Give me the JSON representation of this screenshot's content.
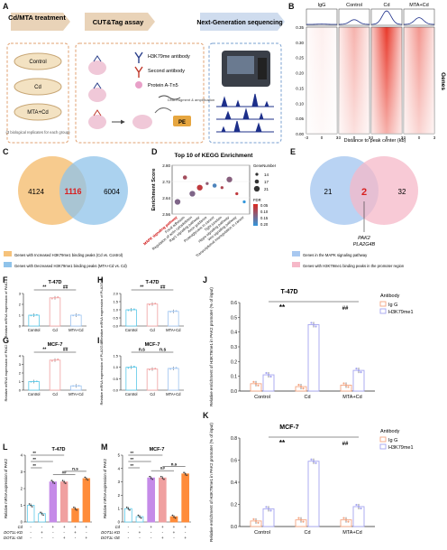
{
  "panels": {
    "A": "A",
    "B": "B",
    "C": "C",
    "D": "D",
    "E": "E",
    "F": "F",
    "G": "G",
    "H": "H",
    "I": "I",
    "J": "J",
    "K": "K",
    "L": "L",
    "M": "M"
  },
  "panelA": {
    "stage1_title": "Cd/MTA treatment",
    "stage2_title": "CUT&Tag assay",
    "stage3_title": "Next-Generation sequencing",
    "dishes": [
      "Control",
      "Cd",
      "MTA+Cd"
    ],
    "replicate_note": "(3 biological replicates for each group)",
    "legend": [
      "H3K79me antibody",
      "Second antibody",
      "Protein A-Tn5"
    ],
    "step_text": "DNA fragment & amplification",
    "tag_label": "PE"
  },
  "panelB": {
    "groups": [
      "IgG",
      "Control",
      "Cd",
      "MTA+Cd"
    ],
    "y_label": "Genes",
    "x_label": "Distance to peak center (kb)",
    "y_ticks": [
      "0.35",
      "0.30",
      "0.25",
      "0.20",
      "0.15",
      "0.10",
      "0.05",
      "0.00"
    ],
    "x_ticks": [
      "-3",
      "0",
      "3"
    ],
    "profile_peaks": [
      0.02,
      0.35,
      1.0,
      0.5
    ]
  },
  "panelC": {
    "left": "4124",
    "overlap": "1116",
    "right": "6004",
    "legend": [
      "Genes with Increased H3K79me1 binding peaks (Cd vs. Control)",
      "Genes with Decreased H3K79me1 binding peaks (MTA+Cd vs. Cd)"
    ],
    "colors": [
      "#f6c27a",
      "#8fc3ea"
    ]
  },
  "panelE": {
    "left": "21",
    "overlap": "2",
    "right": "32",
    "genes": [
      "PAK2",
      "PLA2G4B"
    ],
    "legend": [
      "Genes in the MAPK signaling pathway",
      "Genes with H3K79me1 binding peaks in the promoter region"
    ],
    "colors": [
      "#a8c8f0",
      "#f6b8c8"
    ]
  },
  "chart_data": [
    {
      "id": "D",
      "type": "scatter",
      "title": "Top 10 of KEGG Enrichment",
      "ylabel": "Enrichment Score",
      "ylim": [
        2.56,
        2.8
      ],
      "y_ticks": [
        "2.80",
        "2.72",
        "2.64",
        "2.56"
      ],
      "categories": [
        "MAPK signaling pathway",
        "Focal adhesion",
        "Regulation of actin cytoskeleton",
        "Rap1 signaling pathway",
        "Axon guidance",
        "Proteoglycans in cancer",
        "Tight junction",
        "Hippo signaling pathway",
        "Wnt signaling pathway",
        "Transcriptional misregulation in cancer"
      ],
      "highlight": "MAPK signaling pathway",
      "values": [
        2.62,
        2.74,
        2.66,
        2.69,
        2.71,
        2.7,
        2.69,
        2.73,
        2.66,
        2.62
      ],
      "gene_number": [
        21,
        17,
        21,
        21,
        14,
        17,
        14,
        21,
        14,
        14
      ],
      "fdr": [
        0.2,
        0.12,
        0.2,
        0.06,
        0.16,
        0.3,
        0.1,
        0.18,
        0.06,
        0.36
      ],
      "size_legend_title": "GeneNumber",
      "size_legend": [
        "14",
        "17",
        "21"
      ],
      "color_legend_title": "FDR",
      "color_legend": [
        "0.05",
        "0.10",
        "0.15",
        "0.20"
      ]
    },
    {
      "id": "F",
      "type": "bar",
      "title": "T-47D",
      "ylabel": "Relative mRNA expression of PAK2",
      "categories": [
        "Control",
        "Cd",
        "MTA+Cd"
      ],
      "values": [
        1.0,
        2.6,
        1.0
      ],
      "ylim": [
        0,
        3
      ],
      "y_ticks": [
        "0",
        "1",
        "2",
        "3"
      ],
      "sig": [
        {
          "a": 0,
          "b": 1,
          "t": "**"
        },
        {
          "a": 1,
          "b": 2,
          "t": "##"
        }
      ]
    },
    {
      "id": "G",
      "type": "bar",
      "title": "MCF-7",
      "ylabel": "Relative mRNA expression of PAK2",
      "categories": [
        "Control",
        "Cd",
        "MTA+Cd"
      ],
      "values": [
        1.0,
        3.5,
        0.5
      ],
      "ylim": [
        0,
        4
      ],
      "y_ticks": [
        "0",
        "1",
        "2",
        "3",
        "4"
      ],
      "sig": [
        {
          "a": 0,
          "b": 1,
          "t": "**"
        },
        {
          "a": 1,
          "b": 2,
          "t": "##"
        }
      ]
    },
    {
      "id": "H",
      "type": "bar",
      "title": "T-47D",
      "ylabel": "Relative mRNA expression of PLA2G4B",
      "categories": [
        "Control",
        "Cd",
        "MTA+Cd"
      ],
      "values": [
        1.0,
        1.35,
        0.9
      ],
      "ylim": [
        0,
        2.0
      ],
      "y_ticks": [
        "0.0",
        "0.5",
        "1.0",
        "1.5",
        "2.0"
      ],
      "sig": [
        {
          "a": 0,
          "b": 1,
          "t": "**"
        },
        {
          "a": 1,
          "b": 2,
          "t": "##"
        }
      ]
    },
    {
      "id": "I",
      "type": "bar",
      "title": "MCF-7",
      "ylabel": "Relative mRNA expression of PLA2G4B",
      "categories": [
        "Control",
        "Cd",
        "MTA+Cd"
      ],
      "values": [
        1.0,
        0.92,
        0.95
      ],
      "ylim": [
        0,
        1.5
      ],
      "y_ticks": [
        "0.0",
        "0.5",
        "1.0",
        "1.5"
      ],
      "sig": [
        {
          "a": 0,
          "b": 1,
          "t": "n.s"
        },
        {
          "a": 1,
          "b": 2,
          "t": "n.s"
        }
      ]
    },
    {
      "id": "J",
      "type": "bar",
      "title": "T-47D",
      "ylabel": "Relative enrichment of H3K79me1 in PAK2 promoter (% of input)",
      "categories": [
        "Control",
        "Cd",
        "MTA+Cd"
      ],
      "series": [
        {
          "name": "Ig G",
          "values": [
            0.05,
            0.03,
            0.04
          ]
        },
        {
          "name": "H3K79me1",
          "values": [
            0.11,
            0.45,
            0.14
          ]
        }
      ],
      "ylim": [
        0,
        0.6
      ],
      "y_ticks": [
        "0.0",
        "0.1",
        "0.2",
        "0.3",
        "0.4",
        "0.5",
        "0.6"
      ],
      "legend_title": "Antibody",
      "sig": [
        {
          "t": "**"
        },
        {
          "t": "##"
        }
      ]
    },
    {
      "id": "K",
      "type": "bar",
      "title": "MCF-7",
      "ylabel": "Relative enrichment of H3K79me1 in PAK2 promoter (% of input)",
      "categories": [
        "Control",
        "Cd",
        "MTA+Cd"
      ],
      "series": [
        {
          "name": "Ig G",
          "values": [
            0.05,
            0.06,
            0.06
          ]
        },
        {
          "name": "H3K79me1",
          "values": [
            0.16,
            0.59,
            0.18
          ]
        }
      ],
      "ylim": [
        0,
        0.8
      ],
      "y_ticks": [
        "0.0",
        "0.2",
        "0.4",
        "0.6",
        "0.8"
      ],
      "legend_title": "Antibody",
      "sig": [
        {
          "t": "**"
        },
        {
          "t": "##"
        }
      ]
    },
    {
      "id": "L",
      "type": "bar",
      "title": "T-47D",
      "ylabel": "Relative mRNA expression of PAK2",
      "values": [
        1.0,
        0.5,
        2.4,
        2.4,
        0.8,
        2.6
      ],
      "ylim": [
        0,
        4
      ],
      "y_ticks": [
        "0",
        "1",
        "2",
        "3",
        "4"
      ],
      "rows": [
        {
          "label": "Cd",
          "marks": [
            "-",
            "-",
            "+",
            "+",
            "+",
            "+"
          ]
        },
        {
          "label": "DOT1L-KD",
          "marks": [
            "-",
            "+",
            "-",
            "-",
            "+",
            "-"
          ]
        },
        {
          "label": "DOT1L-OE",
          "marks": [
            "-",
            "-",
            "-",
            "+",
            "-",
            "+"
          ]
        }
      ],
      "sig": [
        {
          "a": 0,
          "b": 1,
          "t": "**"
        },
        {
          "a": 0,
          "b": 2,
          "t": "**"
        },
        {
          "a": 0,
          "b": 3,
          "t": "**"
        },
        {
          "a": 2,
          "b": 4,
          "t": "##"
        },
        {
          "a": 3,
          "b": 5,
          "t": "n.s"
        }
      ]
    },
    {
      "id": "M",
      "type": "bar",
      "title": "MCF-7",
      "ylabel": "Relative mRNA expression of PAK2",
      "values": [
        1.0,
        0.4,
        3.3,
        3.3,
        0.4,
        3.6
      ],
      "ylim": [
        0,
        5
      ],
      "y_ticks": [
        "0",
        "1",
        "2",
        "3",
        "4",
        "5"
      ],
      "rows": [
        {
          "label": "Cd",
          "marks": [
            "-",
            "-",
            "+",
            "+",
            "+",
            "+"
          ]
        },
        {
          "label": "DOT1L-KD",
          "marks": [
            "-",
            "+",
            "-",
            "-",
            "+",
            "-"
          ]
        },
        {
          "label": "DOT1L-OE",
          "marks": [
            "-",
            "-",
            "-",
            "+",
            "-",
            "+"
          ]
        }
      ],
      "sig": [
        {
          "a": 0,
          "b": 1,
          "t": "**"
        },
        {
          "a": 0,
          "b": 2,
          "t": "**"
        },
        {
          "a": 0,
          "b": 3,
          "t": "**"
        },
        {
          "a": 2,
          "b": 4,
          "t": "##"
        },
        {
          "a": 3,
          "b": 5,
          "t": "n.s"
        }
      ]
    }
  ],
  "colors": {
    "control": "#5bc8e8",
    "cd": "#f0a0a0",
    "mta": "#9ec4f0",
    "igg": "#f4a582",
    "h3": "#a6a6f0",
    "kd": "#ff8c3a",
    "oe": "#c58be8",
    "heat": "#e8382a"
  }
}
